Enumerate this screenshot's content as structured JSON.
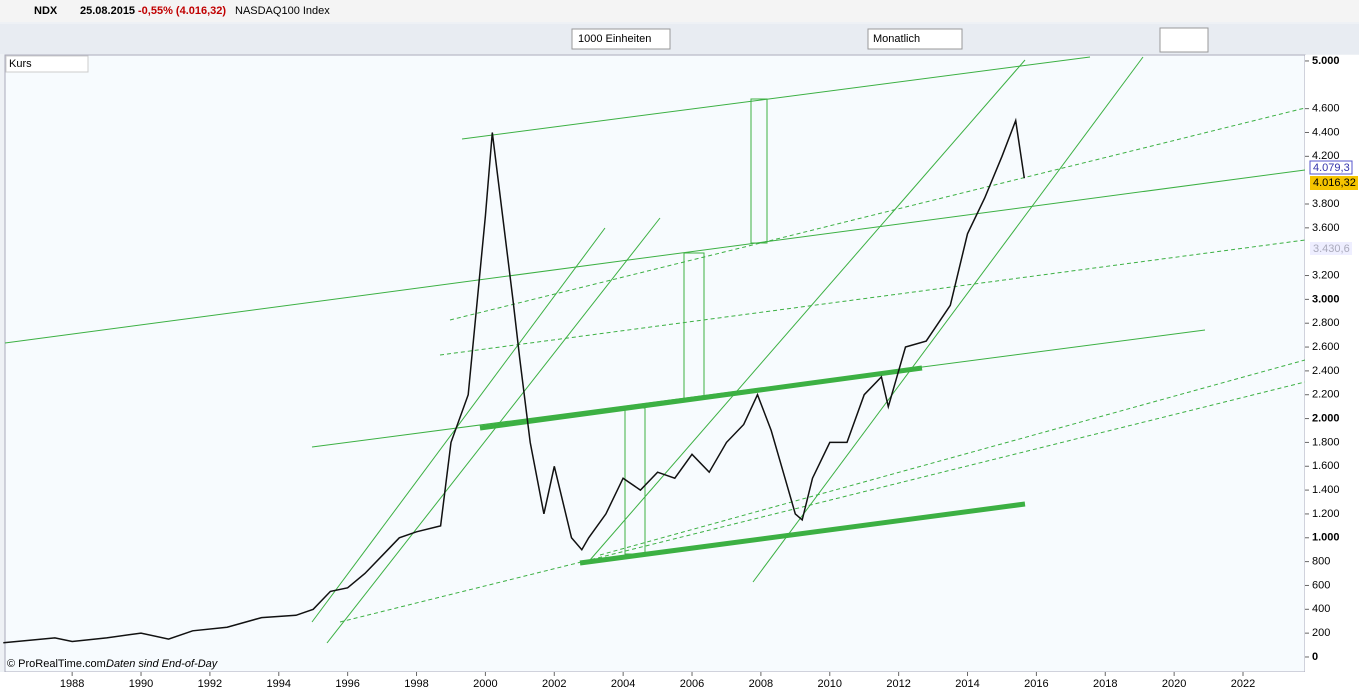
{
  "ui": {
    "symbol": "NDX",
    "date": "25.08.2015",
    "change": "-0,55% (4.016,32)",
    "instrument": "NASDAQ100 Index",
    "units": "1000 Einheiten",
    "period": "Monatlich",
    "panel": "Kurs",
    "copyright": "© ProRealTime.com",
    "note": "Daten sind End-of-Day"
  },
  "chart_data": {
    "type": "line",
    "x": [
      1986.0,
      1987.5,
      1988.0,
      1989.0,
      1990.0,
      1990.8,
      1991.5,
      1992.5,
      1993.5,
      1994.5,
      1995.0,
      1995.5,
      1996.0,
      1996.5,
      1997.0,
      1997.5,
      1998.0,
      1998.7,
      1999.0,
      1999.5,
      2000.0,
      2000.2,
      2000.5,
      2000.8,
      2001.0,
      2001.3,
      2001.7,
      2002.0,
      2002.5,
      2002.8,
      2003.0,
      2003.5,
      2004.0,
      2004.5,
      2005.0,
      2005.5,
      2006.0,
      2006.5,
      2007.0,
      2007.5,
      2007.9,
      2008.3,
      2008.7,
      2009.0,
      2009.2,
      2009.5,
      2010.0,
      2010.5,
      2011.0,
      2011.5,
      2011.7,
      2012.2,
      2012.8,
      2013.5,
      2014.0,
      2014.5,
      2015.0,
      2015.4,
      2015.65
    ],
    "series": [
      {
        "color": "#111111",
        "values": [
          120,
          160,
          130,
          160,
          200,
          150,
          220,
          250,
          330,
          350,
          400,
          550,
          580,
          700,
          850,
          1000,
          1050,
          1100,
          1800,
          2200,
          3700,
          4400,
          3700,
          3000,
          2500,
          1800,
          1200,
          1600,
          1000,
          900,
          1000,
          1200,
          1500,
          1400,
          1550,
          1500,
          1700,
          1550,
          1800,
          1950,
          2200,
          1900,
          1500,
          1200,
          1150,
          1500,
          1800,
          1800,
          2200,
          2350,
          2100,
          2600,
          2650,
          2950,
          3550,
          3850,
          4200,
          4500,
          4016.32
        ]
      }
    ],
    "xlim": [
      1986.05,
      2023.8
    ],
    "xticks": [
      1988,
      1990,
      1992,
      1994,
      1996,
      1998,
      2000,
      2002,
      2004,
      2006,
      2008,
      2010,
      2012,
      2014,
      2016,
      2018,
      2020,
      2022
    ],
    "ylim": [
      -126,
      5050
    ],
    "yticks": [
      {
        "value": 0,
        "label": "0"
      },
      {
        "value": 200,
        "label": "200"
      },
      {
        "value": 400,
        "label": "400"
      },
      {
        "value": 600,
        "label": "600"
      },
      {
        "value": 800,
        "label": "800"
      },
      {
        "value": 1000,
        "label": "1.000"
      },
      {
        "value": 1200,
        "label": "1.200"
      },
      {
        "value": 1400,
        "label": "1.400"
      },
      {
        "value": 1600,
        "label": "1.600"
      },
      {
        "value": 1800,
        "label": "1.800"
      },
      {
        "value": 2000,
        "label": "2.000"
      },
      {
        "value": 2200,
        "label": "2.200"
      },
      {
        "value": 2400,
        "label": "2.400"
      },
      {
        "value": 2600,
        "label": "2.600"
      },
      {
        "value": 2800,
        "label": "2.800"
      },
      {
        "value": 3000,
        "label": "3.000"
      },
      {
        "value": 3200,
        "label": "3.200"
      },
      {
        "value": 3600,
        "label": "3.600"
      },
      {
        "value": 3800,
        "label": "3.800"
      },
      {
        "value": 4200,
        "label": "4.200"
      },
      {
        "value": 4400,
        "label": "4.400"
      },
      {
        "value": 4600,
        "label": "4.600"
      },
      {
        "value": 5000,
        "label": "5.000"
      }
    ],
    "annotations": [
      "4.079,3",
      "4.016,32",
      "3.430,6"
    ]
  }
}
